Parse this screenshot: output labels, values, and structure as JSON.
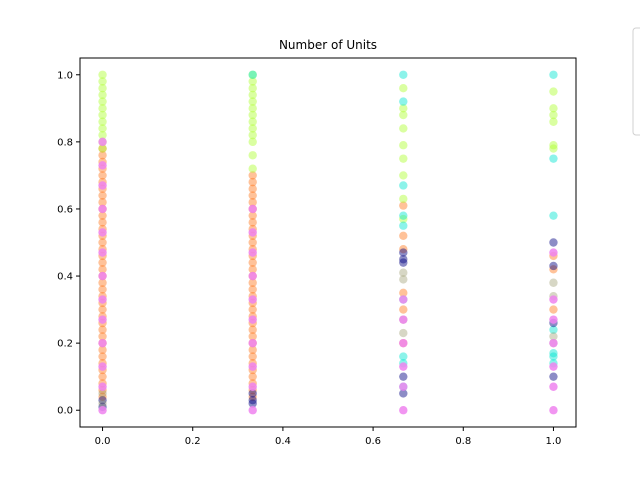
{
  "chart_data": {
    "type": "scatter",
    "title": "Number of Units",
    "xlabel": "",
    "ylabel": "",
    "xlim": [
      -0.05,
      1.05
    ],
    "ylim": [
      -0.05,
      1.05
    ],
    "x_ticks": [
      0.0,
      0.2,
      0.4,
      0.6,
      0.8,
      1.0
    ],
    "x_tick_labels": [
      "0.0",
      "0.2",
      "0.4",
      "0.6",
      "0.8",
      "1.0"
    ],
    "y_ticks": [
      0.0,
      0.2,
      0.4,
      0.6,
      0.8,
      1.0
    ],
    "y_tick_labels": [
      "0.0",
      "0.2",
      "0.4",
      "0.6",
      "0.8",
      "1.0"
    ],
    "grid": false,
    "legend": {
      "placement": "outside-top-right",
      "entries": []
    },
    "series": [
      {
        "color": "#ff6600",
        "opacity": 0.4,
        "points": [
          [
            0.0,
            0.04
          ],
          [
            0.0,
            0.06
          ],
          [
            0.0,
            0.08
          ],
          [
            0.0,
            0.1
          ],
          [
            0.0,
            0.12
          ],
          [
            0.0,
            0.14
          ],
          [
            0.0,
            0.16
          ],
          [
            0.0,
            0.18
          ],
          [
            0.0,
            0.2
          ],
          [
            0.0,
            0.22
          ],
          [
            0.0,
            0.24
          ],
          [
            0.0,
            0.26
          ],
          [
            0.0,
            0.28
          ],
          [
            0.0,
            0.3
          ],
          [
            0.0,
            0.32
          ],
          [
            0.0,
            0.34
          ],
          [
            0.0,
            0.36
          ],
          [
            0.0,
            0.38
          ],
          [
            0.0,
            0.4
          ],
          [
            0.0,
            0.42
          ],
          [
            0.0,
            0.44
          ],
          [
            0.0,
            0.46
          ],
          [
            0.0,
            0.48
          ],
          [
            0.0,
            0.5
          ],
          [
            0.0,
            0.52
          ],
          [
            0.0,
            0.54
          ],
          [
            0.0,
            0.56
          ],
          [
            0.0,
            0.58
          ],
          [
            0.0,
            0.6
          ],
          [
            0.0,
            0.62
          ],
          [
            0.0,
            0.64
          ],
          [
            0.0,
            0.66
          ],
          [
            0.0,
            0.68
          ],
          [
            0.0,
            0.7
          ],
          [
            0.0,
            0.72
          ],
          [
            0.0,
            0.74
          ],
          [
            0.0,
            0.76
          ],
          [
            0.0,
            0.78
          ],
          [
            0.333,
            0.04
          ],
          [
            0.333,
            0.06
          ],
          [
            0.333,
            0.08
          ],
          [
            0.333,
            0.1
          ],
          [
            0.333,
            0.12
          ],
          [
            0.333,
            0.14
          ],
          [
            0.333,
            0.16
          ],
          [
            0.333,
            0.18
          ],
          [
            0.333,
            0.2
          ],
          [
            0.333,
            0.22
          ],
          [
            0.333,
            0.24
          ],
          [
            0.333,
            0.26
          ],
          [
            0.333,
            0.28
          ],
          [
            0.333,
            0.3
          ],
          [
            0.333,
            0.32
          ],
          [
            0.333,
            0.34
          ],
          [
            0.333,
            0.36
          ],
          [
            0.333,
            0.38
          ],
          [
            0.333,
            0.4
          ],
          [
            0.333,
            0.42
          ],
          [
            0.333,
            0.44
          ],
          [
            0.333,
            0.46
          ],
          [
            0.333,
            0.48
          ],
          [
            0.333,
            0.5
          ],
          [
            0.333,
            0.52
          ],
          [
            0.333,
            0.54
          ],
          [
            0.333,
            0.56
          ],
          [
            0.333,
            0.58
          ],
          [
            0.333,
            0.6
          ],
          [
            0.333,
            0.62
          ],
          [
            0.333,
            0.64
          ],
          [
            0.333,
            0.66
          ],
          [
            0.333,
            0.68
          ],
          [
            0.333,
            0.7
          ],
          [
            0.667,
            0.61
          ],
          [
            0.667,
            0.52
          ],
          [
            0.667,
            0.48
          ],
          [
            0.667,
            0.35
          ],
          [
            0.667,
            0.3
          ],
          [
            0.667,
            0.2
          ],
          [
            1.0,
            0.46
          ],
          [
            1.0,
            0.42
          ],
          [
            1.0,
            0.3
          ]
        ]
      },
      {
        "color": "#adff2f",
        "opacity": 0.45,
        "points": [
          [
            0.0,
            0.78
          ],
          [
            0.0,
            0.8
          ],
          [
            0.0,
            0.82
          ],
          [
            0.0,
            0.84
          ],
          [
            0.0,
            0.86
          ],
          [
            0.0,
            0.88
          ],
          [
            0.0,
            0.9
          ],
          [
            0.0,
            0.92
          ],
          [
            0.0,
            0.94
          ],
          [
            0.0,
            0.96
          ],
          [
            0.0,
            0.98
          ],
          [
            0.0,
            1.0
          ],
          [
            0.333,
            0.72
          ],
          [
            0.333,
            0.76
          ],
          [
            0.333,
            0.8
          ],
          [
            0.333,
            0.82
          ],
          [
            0.333,
            0.84
          ],
          [
            0.333,
            0.86
          ],
          [
            0.333,
            0.88
          ],
          [
            0.333,
            0.9
          ],
          [
            0.333,
            0.92
          ],
          [
            0.333,
            0.94
          ],
          [
            0.333,
            0.96
          ],
          [
            0.333,
            0.98
          ],
          [
            0.333,
            1.0
          ],
          [
            0.667,
            0.96
          ],
          [
            0.667,
            0.9
          ],
          [
            0.667,
            0.88
          ],
          [
            0.667,
            0.84
          ],
          [
            0.667,
            0.79
          ],
          [
            0.667,
            0.75
          ],
          [
            0.667,
            0.7
          ],
          [
            0.667,
            0.63
          ],
          [
            0.667,
            0.57
          ],
          [
            1.0,
            0.95
          ],
          [
            1.0,
            0.9
          ],
          [
            1.0,
            0.88
          ],
          [
            1.0,
            0.86
          ],
          [
            1.0,
            0.79
          ],
          [
            1.0,
            0.78
          ]
        ]
      },
      {
        "color": "#00e5d0",
        "opacity": 0.45,
        "points": [
          [
            0.333,
            1.0
          ],
          [
            0.667,
            1.0
          ],
          [
            0.667,
            0.92
          ],
          [
            0.667,
            0.67
          ],
          [
            0.667,
            0.58
          ],
          [
            0.667,
            0.55
          ],
          [
            0.667,
            0.33
          ],
          [
            0.667,
            0.16
          ],
          [
            0.667,
            0.14
          ],
          [
            0.667,
            0.07
          ],
          [
            1.0,
            1.0
          ],
          [
            1.0,
            0.75
          ],
          [
            1.0,
            0.58
          ],
          [
            1.0,
            0.24
          ],
          [
            1.0,
            0.17
          ],
          [
            1.0,
            0.16
          ],
          [
            1.0,
            0.14
          ]
        ]
      },
      {
        "color": "#000080",
        "opacity": 0.45,
        "points": [
          [
            0.0,
            0.01
          ],
          [
            0.0,
            0.03
          ],
          [
            0.333,
            0.02
          ],
          [
            0.333,
            0.03
          ],
          [
            0.333,
            0.05
          ],
          [
            0.667,
            0.47
          ],
          [
            0.667,
            0.45
          ],
          [
            0.667,
            0.44
          ],
          [
            0.667,
            0.1
          ],
          [
            0.667,
            0.05
          ],
          [
            1.0,
            0.5
          ],
          [
            1.0,
            0.43
          ],
          [
            1.0,
            0.26
          ],
          [
            1.0,
            0.1
          ]
        ]
      },
      {
        "color": "#8b8b5a",
        "opacity": 0.35,
        "points": [
          [
            0.0,
            0.02
          ],
          [
            0.0,
            0.05
          ],
          [
            0.667,
            0.41
          ],
          [
            0.667,
            0.39
          ],
          [
            0.667,
            0.27
          ],
          [
            0.667,
            0.23
          ],
          [
            1.0,
            0.38
          ],
          [
            1.0,
            0.34
          ],
          [
            1.0,
            0.22
          ],
          [
            1.0,
            0.2
          ]
        ]
      },
      {
        "color": "#ee82ee",
        "opacity": 0.85,
        "points": [
          [
            0.0,
            0.0
          ],
          [
            0.0,
            0.07
          ],
          [
            0.0,
            0.13
          ],
          [
            0.0,
            0.2
          ],
          [
            0.0,
            0.27
          ],
          [
            0.0,
            0.33
          ],
          [
            0.0,
            0.4
          ],
          [
            0.0,
            0.47
          ],
          [
            0.0,
            0.53
          ],
          [
            0.0,
            0.6
          ],
          [
            0.0,
            0.67
          ],
          [
            0.0,
            0.73
          ],
          [
            0.0,
            0.8
          ],
          [
            0.333,
            0.0
          ],
          [
            0.333,
            0.07
          ],
          [
            0.333,
            0.13
          ],
          [
            0.333,
            0.2
          ],
          [
            0.333,
            0.27
          ],
          [
            0.333,
            0.33
          ],
          [
            0.333,
            0.4
          ],
          [
            0.333,
            0.47
          ],
          [
            0.333,
            0.53
          ],
          [
            0.333,
            0.6
          ],
          [
            0.667,
            0.0
          ],
          [
            0.667,
            0.07
          ],
          [
            0.667,
            0.13
          ],
          [
            0.667,
            0.2
          ],
          [
            0.667,
            0.27
          ],
          [
            0.667,
            0.33
          ],
          [
            1.0,
            0.0
          ],
          [
            1.0,
            0.07
          ],
          [
            1.0,
            0.13
          ],
          [
            1.0,
            0.2
          ],
          [
            1.0,
            0.27
          ],
          [
            1.0,
            0.33
          ],
          [
            1.0,
            0.47
          ]
        ]
      }
    ]
  }
}
